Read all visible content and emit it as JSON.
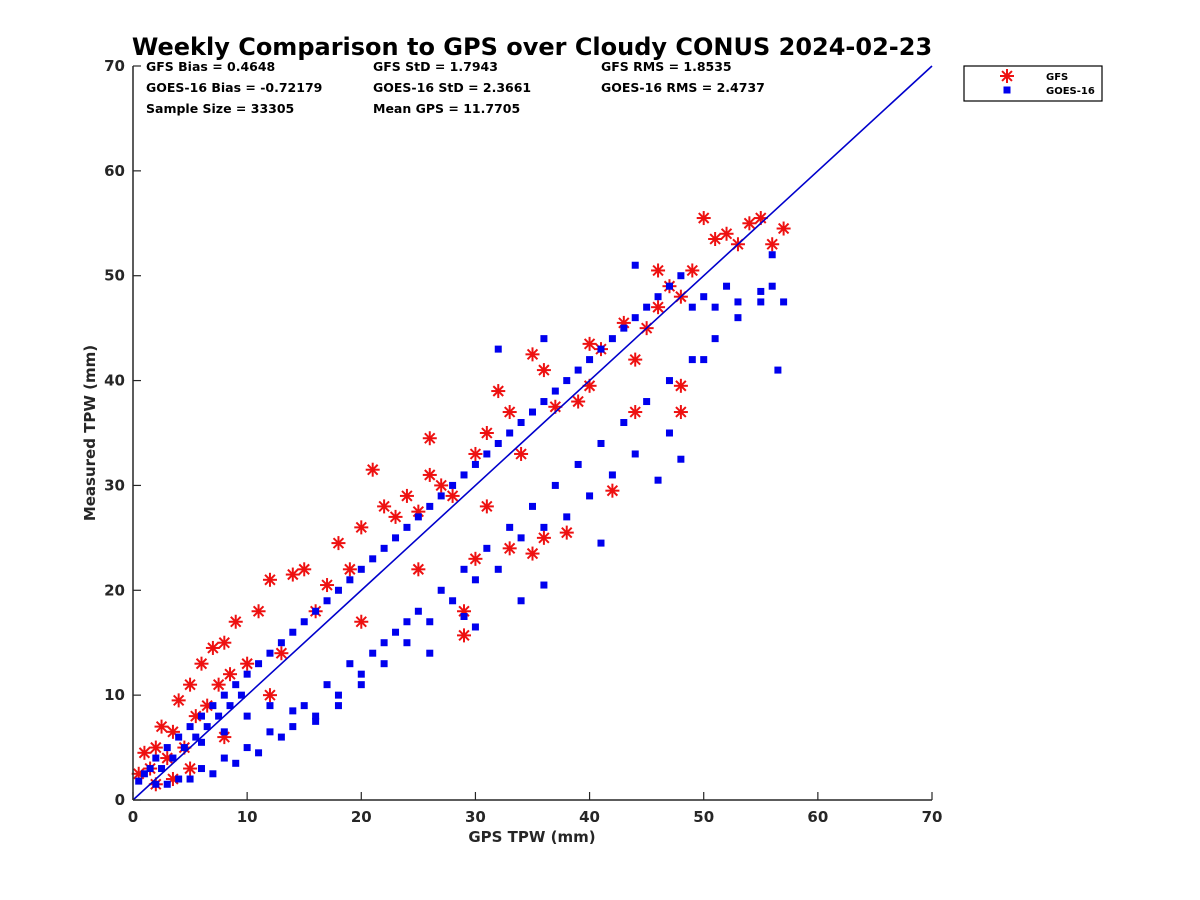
{
  "chart_data": {
    "type": "scatter",
    "title": "Weekly Comparison to GPS over Cloudy CONUS 2024-02-23",
    "xlabel": "GPS TPW (mm)",
    "ylabel": "Measured TPW (mm)",
    "xlim": [
      0,
      70
    ],
    "ylim": [
      0,
      70
    ],
    "xticks": [
      "0",
      "10",
      "20",
      "30",
      "40",
      "50",
      "60",
      "70"
    ],
    "yticks": [
      "0",
      "10",
      "20",
      "30",
      "40",
      "50",
      "60",
      "70"
    ],
    "grid": false,
    "legend": {
      "position": "outside-top-right",
      "entries": [
        "GFS",
        "GOES-16"
      ]
    },
    "stats": [
      "GFS Bias = 0.4648",
      "GFS StD = 1.7943",
      "GFS RMS = 1.8535",
      "GOES-16 Bias = -0.72179",
      "GOES-16 StD = 2.3661",
      "GOES-16 RMS = 2.4737",
      "Sample Size = 33305",
      "Mean GPS = 11.7705"
    ],
    "reference_line": {
      "from": [
        0,
        0
      ],
      "to": [
        70,
        70
      ],
      "color": "#0000cc"
    },
    "series": [
      {
        "name": "GFS",
        "marker": "asterisk",
        "color": "#ee1111",
        "points": [
          [
            0.5,
            2.5
          ],
          [
            1,
            4.5
          ],
          [
            1.5,
            3
          ],
          [
            2,
            5
          ],
          [
            2.5,
            7
          ],
          [
            3,
            4
          ],
          [
            3.5,
            6.5
          ],
          [
            4,
            9.5
          ],
          [
            4.5,
            5
          ],
          [
            5,
            11
          ],
          [
            5.5,
            8
          ],
          [
            6,
            13
          ],
          [
            6.5,
            9
          ],
          [
            7,
            14.5
          ],
          [
            7.5,
            11
          ],
          [
            8,
            15
          ],
          [
            8.5,
            12
          ],
          [
            9,
            17
          ],
          [
            10,
            13
          ],
          [
            11,
            18
          ],
          [
            12,
            21
          ],
          [
            13,
            14
          ],
          [
            14,
            21.5
          ],
          [
            15,
            22
          ],
          [
            16,
            18
          ],
          [
            17,
            20.5
          ],
          [
            18,
            24.5
          ],
          [
            19,
            22
          ],
          [
            20,
            26
          ],
          [
            21,
            31.5
          ],
          [
            22,
            28
          ],
          [
            23,
            27
          ],
          [
            24,
            29
          ],
          [
            25,
            27.5
          ],
          [
            26,
            31
          ],
          [
            27,
            30
          ],
          [
            28,
            29
          ],
          [
            29,
            15.7
          ],
          [
            30,
            33
          ],
          [
            31,
            35
          ],
          [
            32,
            39
          ],
          [
            33,
            37
          ],
          [
            34,
            33
          ],
          [
            35,
            42.5
          ],
          [
            36,
            41
          ],
          [
            37,
            37.5
          ],
          [
            38,
            25.5
          ],
          [
            39,
            38
          ],
          [
            40,
            39.5
          ],
          [
            41,
            43
          ],
          [
            42,
            29.5
          ],
          [
            43,
            45.5
          ],
          [
            44,
            37
          ],
          [
            45,
            45
          ],
          [
            46,
            47
          ],
          [
            47,
            49
          ],
          [
            48,
            48
          ],
          [
            49,
            50.5
          ],
          [
            50,
            55.5
          ],
          [
            51,
            53.5
          ],
          [
            52,
            54
          ],
          [
            53,
            53
          ],
          [
            54,
            55
          ],
          [
            55,
            55.5
          ],
          [
            56,
            53
          ],
          [
            57,
            54.5
          ],
          [
            30,
            23
          ],
          [
            35,
            23.5
          ],
          [
            36,
            25
          ],
          [
            48,
            39.5
          ],
          [
            48,
            37
          ],
          [
            44,
            42
          ],
          [
            40,
            43.5
          ],
          [
            46,
            50.5
          ],
          [
            26,
            34.5
          ],
          [
            5,
            3
          ],
          [
            8,
            6
          ],
          [
            2,
            1.5
          ],
          [
            3.5,
            2
          ],
          [
            12,
            10
          ],
          [
            29,
            18
          ],
          [
            25,
            22
          ],
          [
            33,
            24
          ],
          [
            31,
            28
          ],
          [
            20,
            17
          ]
        ]
      },
      {
        "name": "GOES-16",
        "marker": "square",
        "color": "#0000ee",
        "points": [
          [
            0.5,
            1.8
          ],
          [
            1,
            2.5
          ],
          [
            1.5,
            3
          ],
          [
            2,
            4
          ],
          [
            2.5,
            3
          ],
          [
            3,
            5
          ],
          [
            3.5,
            4
          ],
          [
            4,
            6
          ],
          [
            4.5,
            5
          ],
          [
            5,
            7
          ],
          [
            5.5,
            6
          ],
          [
            6,
            8
          ],
          [
            6.5,
            7
          ],
          [
            7,
            9
          ],
          [
            7.5,
            8
          ],
          [
            8,
            10
          ],
          [
            8.5,
            9
          ],
          [
            9,
            11
          ],
          [
            9.5,
            10
          ],
          [
            10,
            12
          ],
          [
            11,
            13
          ],
          [
            12,
            14
          ],
          [
            13,
            15
          ],
          [
            14,
            16
          ],
          [
            15,
            17
          ],
          [
            16,
            18
          ],
          [
            17,
            19
          ],
          [
            18,
            20
          ],
          [
            19,
            21
          ],
          [
            20,
            22
          ],
          [
            21,
            23
          ],
          [
            22,
            24
          ],
          [
            23,
            25
          ],
          [
            24,
            26
          ],
          [
            25,
            27
          ],
          [
            26,
            28
          ],
          [
            27,
            29
          ],
          [
            28,
            30
          ],
          [
            29,
            31
          ],
          [
            30,
            32
          ],
          [
            31,
            33
          ],
          [
            32,
            34
          ],
          [
            33,
            35
          ],
          [
            34,
            36
          ],
          [
            35,
            37
          ],
          [
            36,
            38
          ],
          [
            37,
            39
          ],
          [
            38,
            40
          ],
          [
            39,
            41
          ],
          [
            40,
            42
          ],
          [
            41,
            43
          ],
          [
            42,
            44
          ],
          [
            43,
            45
          ],
          [
            44,
            46
          ],
          [
            45,
            47
          ],
          [
            46,
            48
          ],
          [
            47,
            49
          ],
          [
            48,
            50
          ],
          [
            49,
            47
          ],
          [
            50,
            48
          ],
          [
            51,
            47
          ],
          [
            52,
            49
          ],
          [
            53,
            47.5
          ],
          [
            55,
            47.5
          ],
          [
            56,
            49
          ],
          [
            57,
            47.5
          ],
          [
            56.5,
            41
          ],
          [
            55,
            48.5
          ],
          [
            56,
            52
          ],
          [
            41,
            24.5
          ],
          [
            34,
            19
          ],
          [
            36,
            20.5
          ],
          [
            30,
            16.5
          ],
          [
            29,
            17.5
          ],
          [
            32,
            43
          ],
          [
            36,
            44
          ],
          [
            44,
            51
          ],
          [
            46,
            30.5
          ],
          [
            48,
            32.5
          ],
          [
            50,
            42
          ],
          [
            14,
            7
          ],
          [
            16,
            8
          ],
          [
            18,
            10
          ],
          [
            20,
            12
          ],
          [
            22,
            15
          ],
          [
            24,
            17
          ],
          [
            26,
            14
          ],
          [
            12,
            6.5
          ],
          [
            10,
            5
          ],
          [
            6,
            3
          ],
          [
            8,
            4
          ],
          [
            4,
            2
          ],
          [
            2,
            1.5
          ],
          [
            3,
            1.5
          ],
          [
            5,
            2
          ],
          [
            7,
            2.5
          ],
          [
            9,
            3.5
          ],
          [
            11,
            4.5
          ],
          [
            13,
            6
          ],
          [
            15,
            9
          ],
          [
            17,
            11
          ],
          [
            19,
            13
          ],
          [
            21,
            14
          ],
          [
            23,
            16
          ],
          [
            25,
            18
          ],
          [
            27,
            20
          ],
          [
            29,
            22
          ],
          [
            31,
            24
          ],
          [
            33,
            26
          ],
          [
            35,
            28
          ],
          [
            37,
            30
          ],
          [
            39,
            32
          ],
          [
            41,
            34
          ],
          [
            43,
            36
          ],
          [
            45,
            38
          ],
          [
            47,
            40
          ],
          [
            49,
            42
          ],
          [
            51,
            44
          ],
          [
            53,
            46
          ],
          [
            42,
            31
          ],
          [
            44,
            33
          ],
          [
            47,
            35
          ],
          [
            40,
            29
          ],
          [
            38,
            27
          ],
          [
            36,
            26
          ],
          [
            34,
            25
          ],
          [
            32,
            22
          ],
          [
            30,
            21
          ],
          [
            28,
            19
          ],
          [
            26,
            17
          ],
          [
            24,
            15
          ],
          [
            22,
            13
          ],
          [
            20,
            11
          ],
          [
            18,
            9
          ],
          [
            16,
            7.5
          ],
          [
            14,
            8.5
          ],
          [
            12,
            9
          ],
          [
            10,
            8
          ],
          [
            8,
            6.5
          ],
          [
            6,
            5.5
          ]
        ]
      }
    ]
  }
}
